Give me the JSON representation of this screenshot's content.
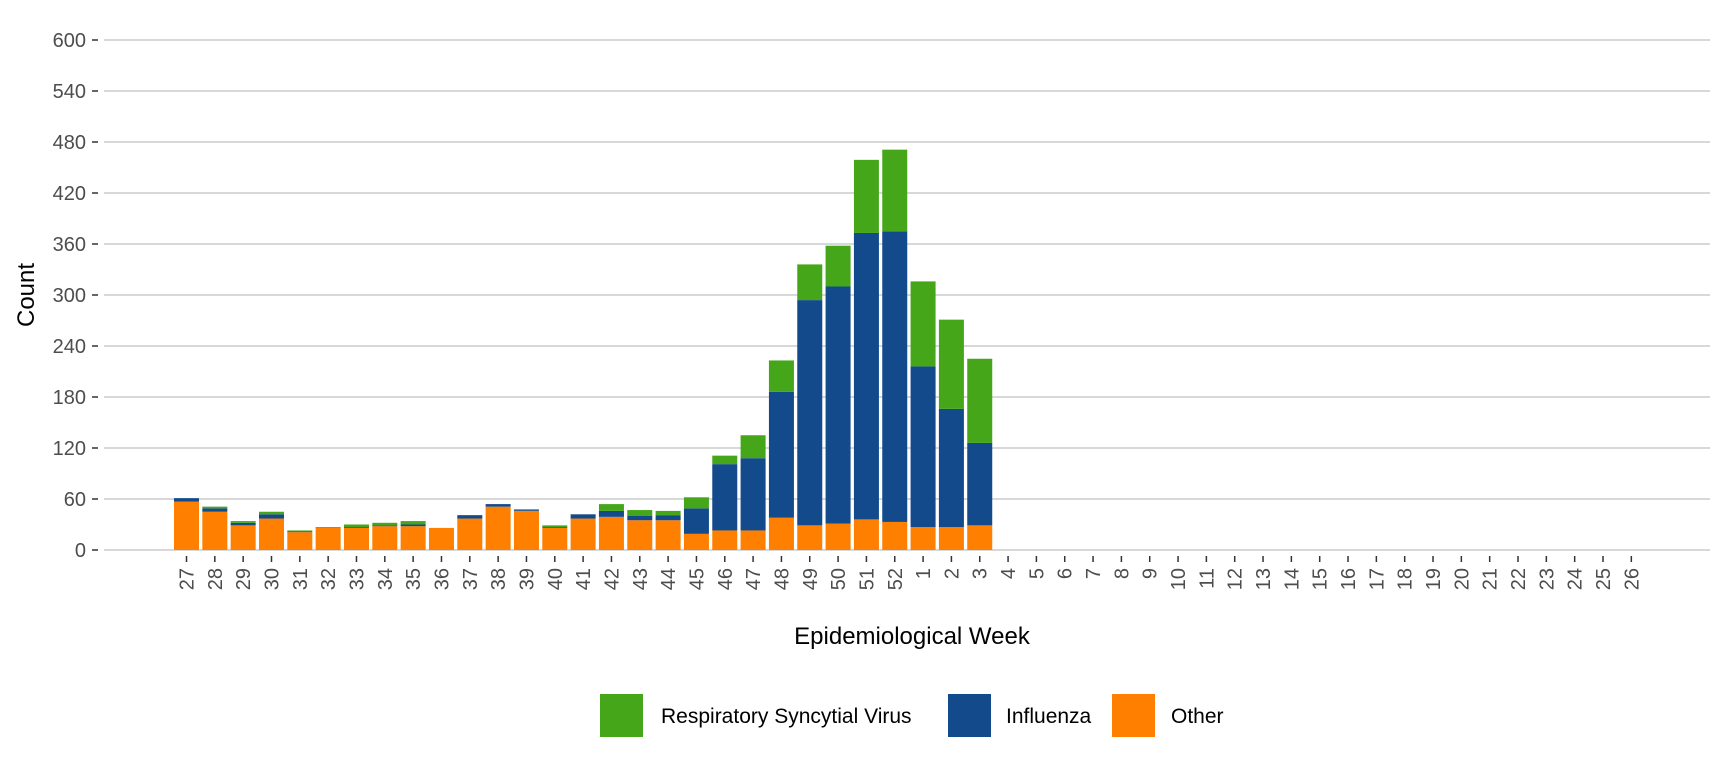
{
  "chart_data": {
    "type": "bar",
    "stacked": true,
    "title": "",
    "xlabel": "Epidemiological Week",
    "ylabel": "Count",
    "ylim": [
      0,
      600
    ],
    "yticks": [
      0,
      60,
      120,
      180,
      240,
      300,
      360,
      420,
      480,
      540,
      600
    ],
    "grid": "horizontal",
    "legend_position": "bottom",
    "categories": [
      "27",
      "28",
      "29",
      "30",
      "31",
      "32",
      "33",
      "34",
      "35",
      "36",
      "37",
      "38",
      "39",
      "40",
      "41",
      "42",
      "43",
      "44",
      "45",
      "46",
      "47",
      "48",
      "49",
      "50",
      "51",
      "52",
      "1",
      "2",
      "3",
      "4",
      "5",
      "6",
      "7",
      "8",
      "9",
      "10",
      "11",
      "12",
      "13",
      "14",
      "15",
      "16",
      "17",
      "18",
      "19",
      "20",
      "21",
      "22",
      "23",
      "24",
      "25",
      "26"
    ],
    "series": [
      {
        "name": "Other",
        "color": "#FF7F00",
        "values": [
          57,
          45,
          29,
          37,
          21,
          26,
          26,
          28,
          28,
          26,
          37,
          51,
          46,
          26,
          37,
          39,
          35,
          35,
          19,
          23,
          23,
          38,
          29,
          31,
          36,
          33,
          27,
          27,
          29,
          null,
          null,
          null,
          null,
          null,
          null,
          null,
          null,
          null,
          null,
          null,
          null,
          null,
          null,
          null,
          null,
          null,
          null,
          null,
          null,
          null,
          null,
          null
        ]
      },
      {
        "name": "Influenza",
        "color": "#124A8C",
        "values": [
          4,
          4,
          3,
          5,
          1,
          0,
          1,
          1,
          2,
          0,
          4,
          3,
          1,
          1,
          5,
          7,
          5,
          6,
          30,
          78,
          85,
          148,
          265,
          279,
          337,
          342,
          189,
          139,
          97,
          null,
          null,
          null,
          null,
          null,
          null,
          null,
          null,
          null,
          null,
          null,
          null,
          null,
          null,
          null,
          null,
          null,
          null,
          null,
          null,
          null,
          null,
          null
        ]
      },
      {
        "name": "Respiratory Syncytial Virus",
        "color": "#45A619",
        "values": [
          0,
          2,
          2,
          3,
          1,
          1,
          3,
          3,
          4,
          0,
          0,
          0,
          1,
          2,
          0,
          8,
          7,
          5,
          13,
          10,
          27,
          37,
          42,
          48,
          86,
          96,
          100,
          105,
          99,
          null,
          null,
          null,
          null,
          null,
          null,
          null,
          null,
          null,
          null,
          null,
          null,
          null,
          null,
          null,
          null,
          null,
          null,
          null,
          null,
          null,
          null,
          null
        ]
      }
    ],
    "legend_order": [
      "Respiratory Syncytial Virus",
      "Influenza",
      "Other"
    ]
  }
}
